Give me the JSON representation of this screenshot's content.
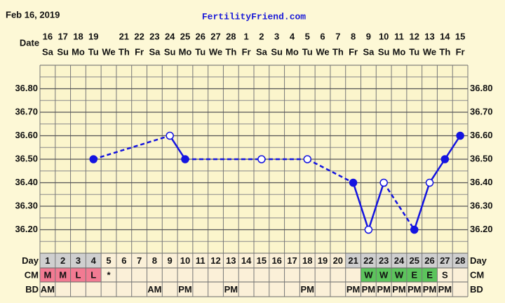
{
  "header": {
    "date": "Feb 16, 2019",
    "site": "FertilityFriend.com"
  },
  "chart_data": {
    "type": "line",
    "date_label": "Date",
    "dates": [
      16,
      17,
      18,
      19,
      null,
      21,
      22,
      23,
      24,
      25,
      26,
      27,
      28,
      1,
      2,
      3,
      4,
      5,
      6,
      7,
      8,
      9,
      10,
      11,
      12,
      13,
      14,
      15
    ],
    "weekdays": [
      "Sa",
      "Su",
      "Mo",
      "Tu",
      "We",
      "Th",
      "Fr",
      "Sa",
      "Su",
      "Mo",
      "Tu",
      "We",
      "Th",
      "Fr",
      "Sa",
      "Su",
      "Mo",
      "Tu",
      "We",
      "Th",
      "Fr",
      "Sa",
      "Su",
      "Mo",
      "Tu",
      "We",
      "Th",
      "Fr"
    ],
    "ylim": [
      36.1,
      36.9
    ],
    "yticks": [
      {
        "value": 36.8,
        "label": "36.80"
      },
      {
        "value": 36.7,
        "label": "36.70"
      },
      {
        "value": 36.6,
        "label": "36.60"
      },
      {
        "value": 36.5,
        "label": "36.50"
      },
      {
        "value": 36.4,
        "label": "36.40"
      },
      {
        "value": 36.3,
        "label": "36.30"
      },
      {
        "value": 36.2,
        "label": "36.20"
      }
    ],
    "ygrid": [
      36.15,
      36.2,
      36.25,
      36.3,
      36.35,
      36.4,
      36.45,
      36.5,
      36.55,
      36.6,
      36.65,
      36.7,
      36.75,
      36.8,
      36.85
    ],
    "series": [
      {
        "color": "#1414e0",
        "values": [
          null,
          null,
          null,
          36.5,
          null,
          null,
          null,
          null,
          36.6,
          36.5,
          null,
          null,
          null,
          null,
          36.5,
          null,
          null,
          36.5,
          null,
          null,
          36.4,
          36.2,
          36.4,
          null,
          36.2,
          36.4,
          36.5,
          36.6
        ],
        "open": [
          false,
          false,
          false,
          false,
          false,
          false,
          false,
          false,
          true,
          false,
          false,
          false,
          false,
          false,
          true,
          false,
          false,
          true,
          false,
          false,
          false,
          true,
          true,
          false,
          false,
          true,
          false,
          false
        ]
      }
    ],
    "day_label": "Day",
    "days": [
      1,
      2,
      3,
      4,
      5,
      6,
      7,
      8,
      9,
      10,
      11,
      12,
      13,
      14,
      15,
      16,
      17,
      18,
      19,
      20,
      21,
      22,
      23,
      24,
      25,
      26,
      27,
      28
    ],
    "day_shaded": [
      true,
      true,
      true,
      true,
      false,
      false,
      false,
      false,
      false,
      false,
      false,
      false,
      false,
      false,
      false,
      false,
      false,
      false,
      false,
      false,
      true,
      true,
      true,
      true,
      true,
      true,
      true,
      true
    ],
    "day_shade_color": "#cfcfcf",
    "cm_label": "CM",
    "cm": [
      "M",
      "M",
      "L",
      "L",
      "*",
      null,
      null,
      null,
      null,
      null,
      null,
      null,
      null,
      null,
      null,
      null,
      null,
      null,
      null,
      null,
      null,
      "W",
      "W",
      "W",
      "E",
      "E",
      "S",
      null
    ],
    "cm_colors": {
      "M": "#f27a92",
      "L": "#f27a92",
      "W": "#5cc45c",
      "E": "#5cc45c"
    },
    "bd_label": "BD",
    "bd": [
      "AM",
      null,
      null,
      null,
      null,
      null,
      null,
      "AM",
      null,
      "PM",
      null,
      null,
      "PM",
      null,
      null,
      null,
      null,
      "PM",
      null,
      null,
      "PM",
      "PM",
      "PM",
      "PM",
      "PM",
      "PM",
      "PM",
      null
    ]
  }
}
